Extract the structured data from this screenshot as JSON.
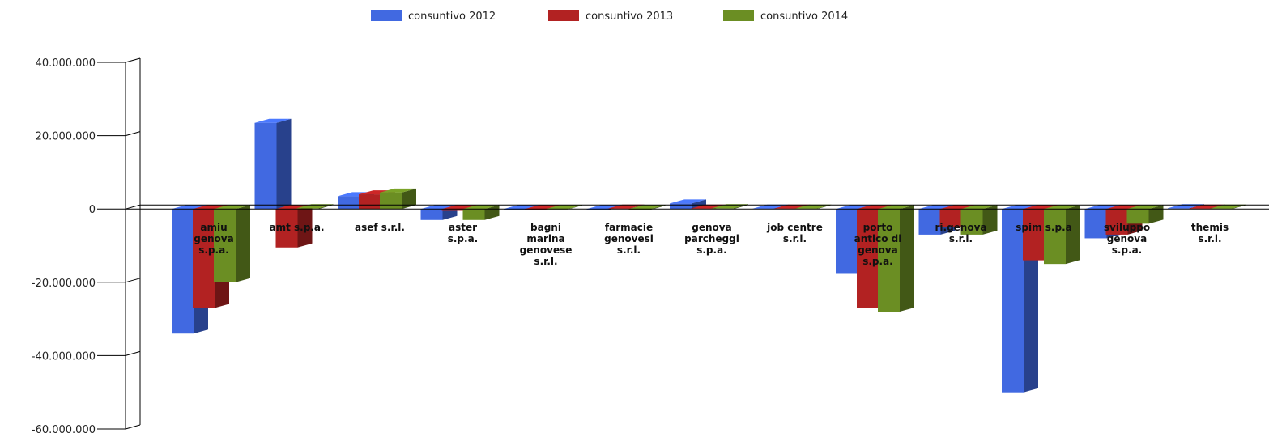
{
  "chart_data": {
    "type": "bar",
    "title": "",
    "xlabel": "",
    "ylabel": "",
    "ylim": [
      -60000000,
      40000000
    ],
    "yticks": [
      40000000,
      20000000,
      0,
      -20000000,
      -40000000,
      -60000000
    ],
    "ytick_labels": [
      "40.000.000",
      "20.000.000",
      "0",
      "-20.000.000",
      "-40.000.000",
      "-60.000.000"
    ],
    "legend_position": "top-center",
    "categories": [
      "amiu genova s.p.a.",
      "amt s.p.a.",
      "asef s.r.l.",
      "aster s.p.a.",
      "bagni marina genovese s.r.l.",
      "farmacie genovesi s.r.l.",
      "genova parcheggi s.p.a.",
      "job centre s.r.l.",
      "porto antico di genova s.p.a.",
      "ri.genova s.r.l.",
      "spim s.p.a",
      "sviluppo genova s.p.a.",
      "themis s.r.l."
    ],
    "category_lines": [
      [
        "amiu",
        "genova",
        "s.p.a."
      ],
      [
        "amt s.p.a."
      ],
      [
        "asef s.r.l."
      ],
      [
        "aster",
        "s.p.a."
      ],
      [
        "bagni",
        "marina",
        "genovese",
        "s.r.l."
      ],
      [
        "farmacie",
        "genovesi",
        "s.r.l."
      ],
      [
        "genova",
        "parcheggi",
        "s.p.a."
      ],
      [
        "job centre",
        "s.r.l."
      ],
      [
        "porto",
        "antico di",
        "genova",
        "s.p.a."
      ],
      [
        "ri.genova",
        "s.r.l."
      ],
      [
        "spim s.p.a"
      ],
      [
        "sviluppo",
        "genova",
        "s.p.a."
      ],
      [
        "themis",
        "s.r.l."
      ]
    ],
    "series": [
      {
        "name": "consuntivo 2012",
        "color": "#4169e1",
        "values": [
          -34000000,
          23500000,
          3500000,
          -3000000,
          -300000,
          -300000,
          1500000,
          100000,
          -17500000,
          -7000000,
          -50000000,
          -8000000,
          200000
        ]
      },
      {
        "name": "consuntivo 2013",
        "color": "#b22222",
        "values": [
          -27000000,
          -10500000,
          4000000,
          -500000,
          -200000,
          100000,
          100000,
          100000,
          -27000000,
          -5000000,
          -14000000,
          -7000000,
          100000
        ]
      },
      {
        "name": "consuntivo 2014",
        "color": "#6b8e23",
        "values": [
          -20000000,
          200000,
          4500000,
          -3000000,
          -100000,
          -200000,
          200000,
          100000,
          -28000000,
          -7000000,
          -15000000,
          -4000000,
          100000
        ]
      }
    ]
  }
}
